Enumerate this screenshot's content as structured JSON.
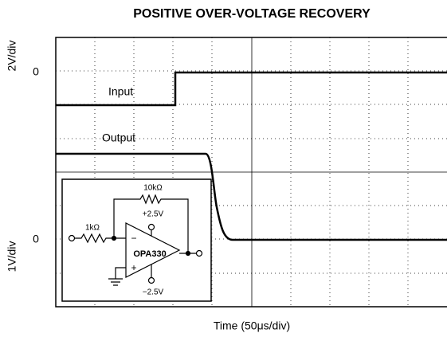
{
  "title": "POSITIVE OVER-VOLTAGE RECOVERY",
  "upper_axis": {
    "label": "2V/div",
    "zero": "0"
  },
  "lower_axis": {
    "label": "1V/div",
    "zero": "0"
  },
  "x_axis_label": "Time (50μs/div)",
  "traces": [
    "Input",
    "Output"
  ],
  "schematic": {
    "feedback_resistor": "10kΩ",
    "input_resistor": "1kΩ",
    "positive_supply": "+2.5V",
    "negative_supply": "−2.5V",
    "amplifier": "OPA330",
    "inverting": "−",
    "noninverting": "+"
  }
}
